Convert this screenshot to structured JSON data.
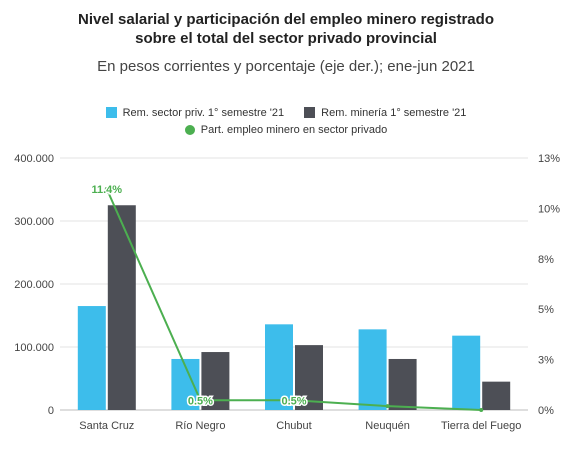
{
  "chart_data": {
    "type": "bar",
    "title_line1": "Nivel salarial y participación del empleo minero registrado",
    "title_line2": "sobre el total del sector privado provincial",
    "subtitle": "En pesos corrientes y porcentaje (eje der.); ene-jun 2021",
    "categories": [
      "Santa Cruz",
      "Río Negro",
      "Chubut",
      "Neuquén",
      "Tierra del Fuego"
    ],
    "series": [
      {
        "name": "Rem. sector priv. 1° semestre '21",
        "type": "bar",
        "axis": "left",
        "color": "#3dbdeb",
        "values": [
          165000,
          81000,
          136000,
          128000,
          118000
        ]
      },
      {
        "name": "Rem. minería 1° semestre '21",
        "type": "bar",
        "axis": "left",
        "color": "#4d4f56",
        "values": [
          325000,
          92000,
          103000,
          81000,
          45000
        ]
      },
      {
        "name": "Part. empleo minero en sector privado",
        "type": "line",
        "axis": "right",
        "color": "#4caf50",
        "values": [
          11.4,
          0.5,
          0.5,
          0.2,
          0.0
        ],
        "data_labels": [
          "11.4%",
          "0.5%",
          "0.5%",
          "",
          ""
        ]
      }
    ],
    "y_left": {
      "ylim": [
        0,
        400000
      ],
      "ticks": [
        "0",
        "100.000",
        "200.000",
        "300.000",
        "400.000"
      ]
    },
    "y_right": {
      "ylim": [
        0,
        13
      ],
      "ticks": [
        "0%",
        "3%",
        "5%",
        "8%",
        "10%",
        "13%"
      ],
      "tick_values": [
        0,
        2.6,
        5.2,
        7.8,
        10.4,
        13
      ]
    },
    "grid": true,
    "legend_position": "top"
  }
}
